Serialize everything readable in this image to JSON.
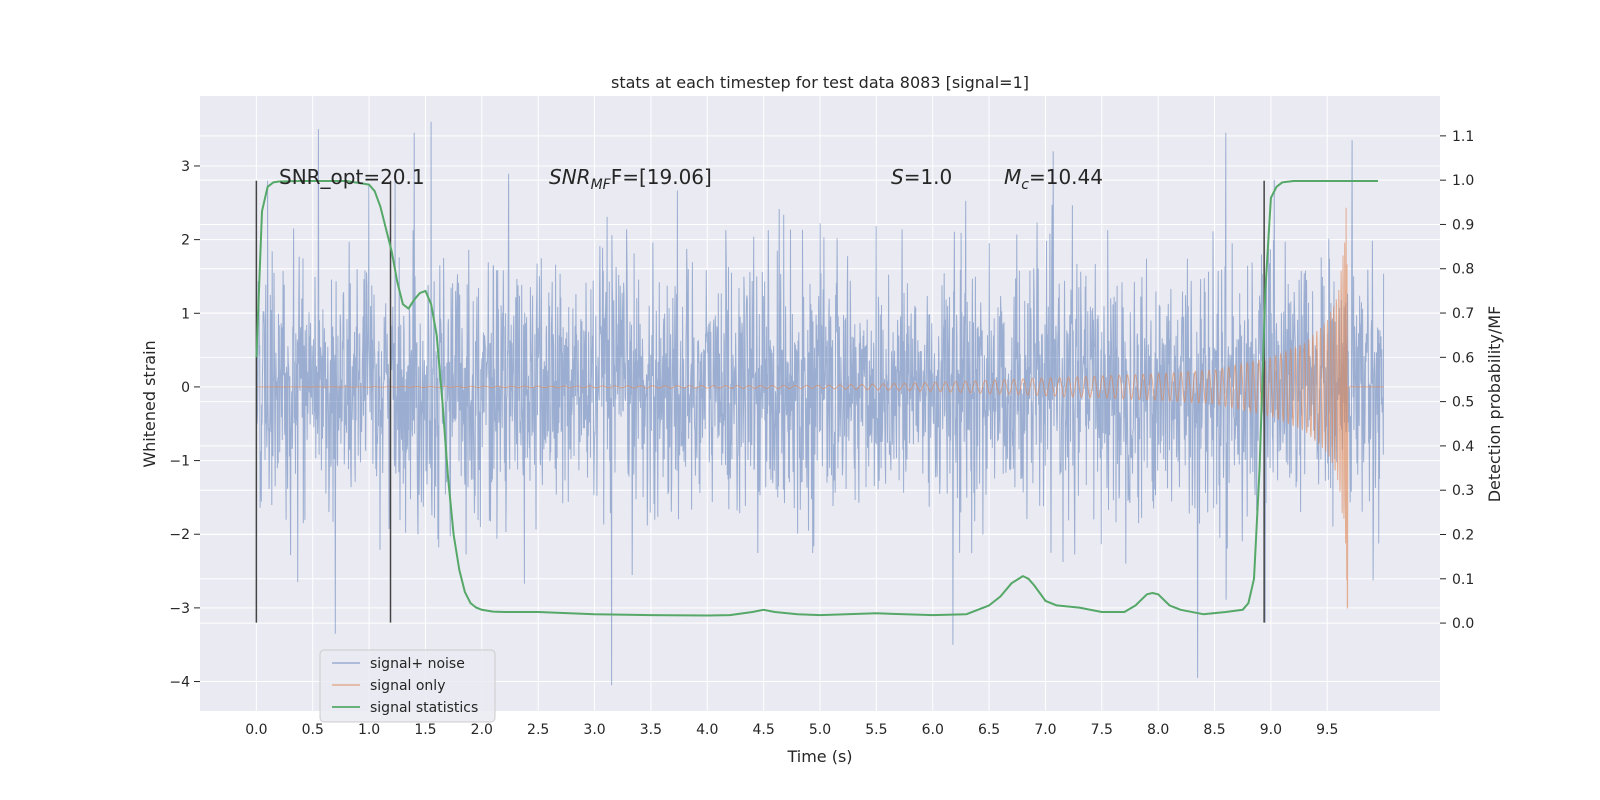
{
  "chart_data": {
    "type": "line",
    "title": "stats at each timestep for test data 8083 [signal=1]",
    "xlabel": "Time (s)",
    "ylabel": "Whitened strain",
    "y2label": "Detection probability/MF",
    "xlim": [
      -0.5,
      10.5
    ],
    "ylim": [
      -4.4,
      3.95
    ],
    "y2lim": [
      -0.1985,
      1.19
    ],
    "x_ticks": [
      0.0,
      0.5,
      1.0,
      1.5,
      2.0,
      2.5,
      3.0,
      3.5,
      4.0,
      4.5,
      5.0,
      5.5,
      6.0,
      6.5,
      7.0,
      7.5,
      8.0,
      8.5,
      9.0,
      9.5
    ],
    "x_tick_labels": [
      "0.0",
      "0.5",
      "1.0",
      "1.5",
      "2.0",
      "2.5",
      "3.0",
      "3.5",
      "4.0",
      "4.5",
      "5.0",
      "5.5",
      "6.0",
      "6.5",
      "7.0",
      "7.5",
      "8.0",
      "8.5",
      "9.0",
      "9.5"
    ],
    "y_ticks": [
      3,
      2,
      1,
      0,
      -1,
      -2,
      -3,
      -4
    ],
    "y_tick_labels": [
      "3",
      "2",
      "1",
      "0",
      "−1",
      "−2",
      "−3",
      "−4"
    ],
    "y2_ticks": [
      1.1,
      1.0,
      0.9,
      0.8,
      0.7,
      0.6,
      0.5,
      0.4,
      0.3,
      0.2,
      0.1,
      0.0
    ],
    "y2_tick_labels": [
      "1.1",
      "1.0",
      "0.9",
      "0.8",
      "0.7",
      "0.6",
      "0.5",
      "0.4",
      "0.3",
      "0.2",
      "0.1",
      "0.0"
    ],
    "grid": true,
    "legend_position": "lower-left",
    "annotations": {
      "snr_opt": "SNR_opt=20.1",
      "snr_mf_main": "SNR",
      "snr_mf_sub": "MF",
      "snr_mf_rest": "F=[19.06]",
      "s_sym": "S",
      "s_rest": "=1.0",
      "mc_sym": "M",
      "mc_sub": "c",
      "mc_rest": "=10.44"
    },
    "vertical_lines": [
      {
        "x": 0.0,
        "y_range": [
          -3.2,
          2.8
        ]
      },
      {
        "x": 1.19,
        "y_range": [
          -3.2,
          2.8
        ]
      },
      {
        "x": 8.94,
        "y_range": [
          -3.2,
          2.8
        ]
      }
    ],
    "series": [
      {
        "name": "signal+ noise",
        "color": "#4c72b0",
        "opacity": 0.5,
        "x_range": [
          0.0,
          10.0
        ],
        "typical_range": [
          -1.5,
          1.6
        ],
        "peaks": [
          {
            "x": 0.1,
            "y": 2.8
          },
          {
            "x": 0.55,
            "y": 3.5
          },
          {
            "x": 0.7,
            "y": -3.35
          },
          {
            "x": 1.4,
            "y": 3.45
          },
          {
            "x": 1.55,
            "y": 3.6
          },
          {
            "x": 3.15,
            "y": -4.05
          },
          {
            "x": 6.18,
            "y": -3.5
          },
          {
            "x": 8.35,
            "y": -3.95
          },
          {
            "x": 8.6,
            "y": 3.45
          },
          {
            "x": 8.95,
            "y": -3.2
          },
          {
            "x": 9.72,
            "y": 3.35
          }
        ]
      },
      {
        "name": "signal only",
        "color": "#dd8452",
        "x_range": [
          0.0,
          10.0
        ],
        "merger_time": 9.68,
        "amplitude_envelope": {
          "t": [
            0.0,
            5.0,
            6.0,
            7.0,
            8.0,
            8.5,
            9.0,
            9.3,
            9.5,
            9.6,
            9.66,
            9.68
          ],
          "a": [
            0.0,
            0.02,
            0.06,
            0.12,
            0.18,
            0.23,
            0.4,
            0.6,
            0.9,
            1.3,
            2.1,
            3.0
          ]
        }
      },
      {
        "name": "signal statistics",
        "color": "#55a868",
        "axis": "right",
        "x": [
          0.0,
          0.05,
          0.1,
          0.15,
          0.2,
          0.4,
          0.6,
          0.8,
          1.0,
          1.05,
          1.1,
          1.15,
          1.2,
          1.25,
          1.3,
          1.35,
          1.4,
          1.45,
          1.5,
          1.55,
          1.6,
          1.65,
          1.7,
          1.75,
          1.8,
          1.85,
          1.9,
          1.95,
          2.0,
          2.1,
          2.2,
          2.5,
          3.0,
          3.5,
          4.0,
          4.2,
          4.4,
          4.5,
          4.6,
          4.8,
          5.0,
          5.5,
          6.0,
          6.3,
          6.5,
          6.6,
          6.7,
          6.8,
          6.85,
          6.9,
          7.0,
          7.1,
          7.3,
          7.5,
          7.7,
          7.8,
          7.9,
          7.95,
          8.0,
          8.1,
          8.2,
          8.4,
          8.6,
          8.75,
          8.8,
          8.85,
          8.9,
          8.95,
          9.0,
          9.05,
          9.1,
          9.2,
          9.4,
          9.6,
          9.8,
          9.95
        ],
        "y": [
          0.6,
          0.93,
          0.985,
          0.995,
          0.997,
          0.998,
          0.998,
          0.998,
          0.99,
          0.975,
          0.94,
          0.89,
          0.84,
          0.77,
          0.72,
          0.71,
          0.73,
          0.745,
          0.75,
          0.72,
          0.65,
          0.5,
          0.33,
          0.2,
          0.12,
          0.07,
          0.045,
          0.035,
          0.03,
          0.026,
          0.025,
          0.025,
          0.02,
          0.018,
          0.017,
          0.018,
          0.025,
          0.03,
          0.025,
          0.02,
          0.018,
          0.022,
          0.018,
          0.02,
          0.04,
          0.06,
          0.09,
          0.106,
          0.1,
          0.085,
          0.05,
          0.04,
          0.035,
          0.025,
          0.025,
          0.04,
          0.065,
          0.068,
          0.065,
          0.04,
          0.03,
          0.02,
          0.025,
          0.03,
          0.045,
          0.1,
          0.35,
          0.75,
          0.96,
          0.985,
          0.995,
          0.998,
          0.998,
          0.998,
          0.998,
          0.998
        ]
      }
    ]
  }
}
